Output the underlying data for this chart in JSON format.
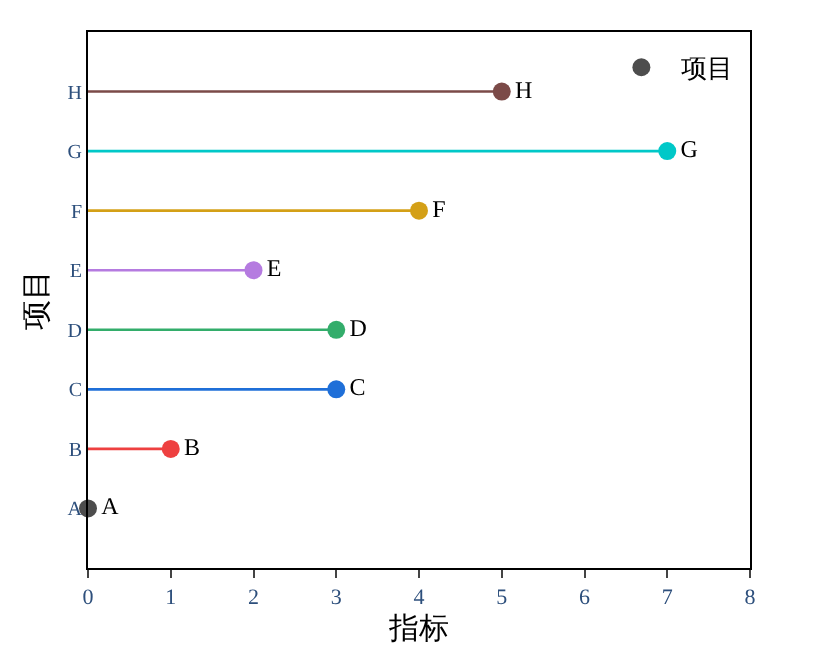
{
  "chart_data": {
    "type": "lollipop",
    "orientation": "horizontal",
    "xlabel": "指标",
    "ylabel": "项目",
    "categories": [
      "H",
      "G",
      "F",
      "E",
      "D",
      "C",
      "B",
      "A"
    ],
    "series": [
      {
        "name": "项目",
        "color": "#4d4d4d",
        "colors": [
          "#7b4a48",
          "#00c8c8",
          "#d4a017",
          "#b57be0",
          "#33ad6b",
          "#1f6fd8",
          "#ee4040",
          "#4d4d4d"
        ],
        "values": [
          5,
          7,
          4,
          2,
          3,
          3,
          1,
          0
        ],
        "value_labels": [
          "H",
          "G",
          "F",
          "E",
          "D",
          "C",
          "B",
          "A"
        ]
      }
    ],
    "xlim": [
      0,
      8
    ],
    "xticks": [
      0,
      1,
      2,
      3,
      4,
      5,
      6,
      7,
      8
    ],
    "legend": "top right",
    "marker": "circle"
  }
}
